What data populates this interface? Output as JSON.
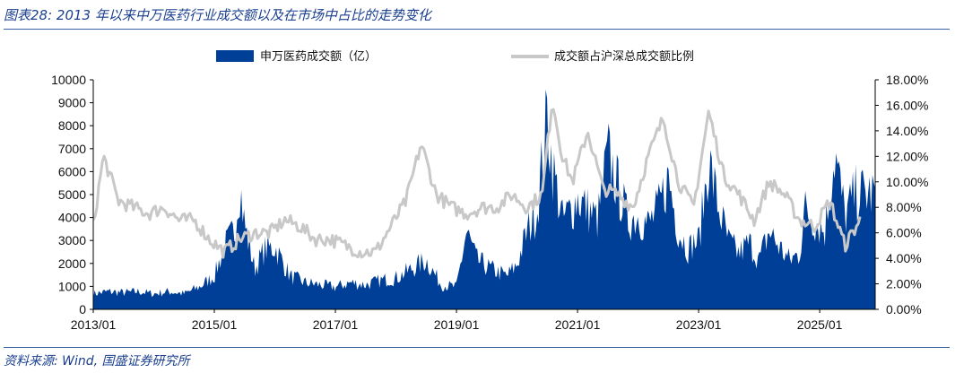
{
  "figure": {
    "title": "图表28:  2013 年以来中万医药行业成交额以及在市场中占比的走势变化",
    "source": "资料来源:  Wind,  国盛证券研究所"
  },
  "colors": {
    "bar": "#003f98",
    "line": "#c8c8c8",
    "axis": "#000000",
    "rule": "#3b62a8",
    "title_text": "#1a3f8f"
  },
  "chart_data": {
    "type": "bar+line",
    "title": "",
    "xlabel": "",
    "ylabel": "",
    "y2label": "",
    "legend_position": "top-center",
    "grid": false,
    "x_range": [
      "2013/01",
      "2025/12"
    ],
    "x_ticks": [
      "2013/01",
      "2015/01",
      "2017/01",
      "2019/01",
      "2021/01",
      "2023/01",
      "2025/01"
    ],
    "y_left": {
      "min": 0,
      "max": 10000,
      "step": 1000,
      "ticks": [
        "0",
        "1000",
        "2000",
        "3000",
        "4000",
        "5000",
        "6000",
        "7000",
        "8000",
        "9000",
        "10000"
      ]
    },
    "y_right": {
      "min": 0,
      "max": 18,
      "step": 2,
      "unit": "%",
      "ticks": [
        "0.00%",
        "2.00%",
        "4.00%",
        "6.00%",
        "8.00%",
        "10.00%",
        "12.00%",
        "14.00%",
        "16.00%",
        "18.00%"
      ]
    },
    "series": [
      {
        "name": "申万医药成交额（亿）",
        "kind": "bar",
        "axis": "left",
        "x": [
          "2013/01",
          "2013/04",
          "2013/07",
          "2013/10",
          "2014/01",
          "2014/04",
          "2014/07",
          "2014/10",
          "2015/01",
          "2015/03",
          "2015/05",
          "2015/06",
          "2015/07",
          "2015/09",
          "2015/11",
          "2016/01",
          "2016/04",
          "2016/07",
          "2016/10",
          "2017/01",
          "2017/04",
          "2017/07",
          "2017/10",
          "2018/01",
          "2018/04",
          "2018/07",
          "2018/10",
          "2019/01",
          "2019/03",
          "2019/05",
          "2019/08",
          "2019/11",
          "2020/01",
          "2020/03",
          "2020/05",
          "2020/07",
          "2020/08",
          "2020/10",
          "2020/12",
          "2021/01",
          "2021/03",
          "2021/05",
          "2021/07",
          "2021/09",
          "2021/11",
          "2022/01",
          "2022/03",
          "2022/05",
          "2022/07",
          "2022/09",
          "2022/11",
          "2022/12",
          "2023/01",
          "2023/03",
          "2023/05",
          "2023/07",
          "2023/09",
          "2023/11",
          "2024/01",
          "2024/03",
          "2024/05",
          "2024/07",
          "2024/09",
          "2024/10",
          "2024/12",
          "2025/02",
          "2025/04",
          "2025/06",
          "2025/08"
        ],
        "values": [
          700,
          800,
          750,
          800,
          700,
          800,
          700,
          1000,
          1500,
          2800,
          3500,
          5700,
          3800,
          1800,
          2700,
          2800,
          1500,
          1200,
          1100,
          1000,
          1200,
          1100,
          1300,
          1400,
          1800,
          2200,
          1100,
          1000,
          3500,
          2200,
          1800,
          1500,
          2000,
          3500,
          4500,
          8700,
          6500,
          4000,
          4600,
          5000,
          4500,
          4000,
          7000,
          5500,
          4000,
          4200,
          3800,
          4500,
          5900,
          3500,
          2700,
          3000,
          3000,
          6700,
          4500,
          3000,
          2500,
          3000,
          2200,
          3500,
          2800,
          2200,
          2500,
          4500,
          4000,
          3500,
          7000,
          4200,
          5200
        ]
      },
      {
        "name": "成交额占沪深总成交额比例",
        "kind": "line",
        "axis": "right",
        "x": [
          "2013/01",
          "2013/03",
          "2013/06",
          "2013/09",
          "2013/12",
          "2014/03",
          "2014/06",
          "2014/09",
          "2014/12",
          "2015/03",
          "2015/06",
          "2015/09",
          "2015/12",
          "2016/03",
          "2016/06",
          "2016/09",
          "2016/12",
          "2017/03",
          "2017/06",
          "2017/09",
          "2017/12",
          "2018/03",
          "2018/06",
          "2018/09",
          "2018/12",
          "2019/03",
          "2019/06",
          "2019/09",
          "2019/12",
          "2020/03",
          "2020/06",
          "2020/08",
          "2020/10",
          "2020/12",
          "2021/03",
          "2021/06",
          "2021/09",
          "2021/12",
          "2022/03",
          "2022/06",
          "2022/09",
          "2022/12",
          "2023/03",
          "2023/06",
          "2023/09",
          "2023/12",
          "2024/03",
          "2024/06",
          "2024/09",
          "2024/12",
          "2025/03",
          "2025/06",
          "2025/09"
        ],
        "values": [
          6.5,
          12.0,
          8.5,
          8.0,
          7.5,
          8.0,
          7.0,
          7.0,
          5.5,
          4.5,
          5.5,
          6.0,
          6.0,
          7.0,
          6.5,
          5.5,
          5.5,
          5.0,
          4.5,
          4.5,
          6.5,
          8.5,
          13.0,
          9.0,
          8.0,
          7.5,
          8.0,
          8.0,
          9.0,
          8.0,
          9.0,
          16.5,
          12.0,
          10.0,
          14.0,
          9.5,
          9.0,
          8.0,
          12.0,
          15.0,
          10.0,
          8.0,
          15.5,
          10.5,
          9.0,
          7.0,
          10.0,
          9.0,
          7.0,
          6.5,
          8.5,
          5.0,
          7.0
        ]
      }
    ]
  }
}
